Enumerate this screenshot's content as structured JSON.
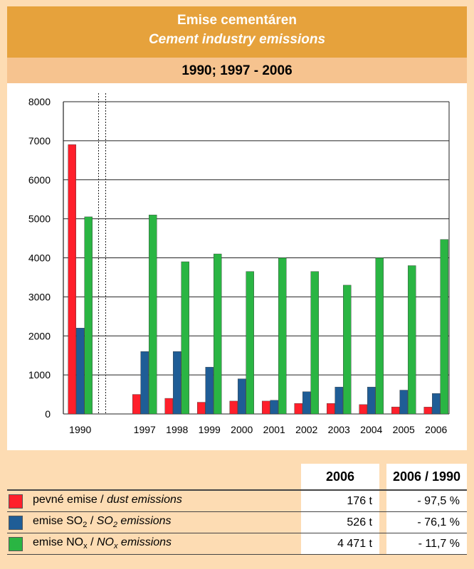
{
  "header": {
    "title_cz": "Emise cementáren",
    "title_en": "Cement industry emissions",
    "period": "1990; 1997 - 2006"
  },
  "chart_data": {
    "type": "bar",
    "categories": [
      "1990",
      "1997",
      "1998",
      "1999",
      "2000",
      "2001",
      "2002",
      "2003",
      "2004",
      "2005",
      "2006"
    ],
    "axis_break_after": "1990",
    "series": [
      {
        "name": "pevné emise / dust emissions",
        "color": "#ff1f2b",
        "values": [
          6900,
          500,
          400,
          300,
          330,
          330,
          270,
          270,
          240,
          180,
          176
        ]
      },
      {
        "name": "emise SO2 / SO2 emissions",
        "color": "#1f5d96",
        "values": [
          2200,
          1600,
          1600,
          1200,
          900,
          350,
          570,
          690,
          690,
          610,
          526
        ]
      },
      {
        "name": "emise NOx / NOx emissions",
        "color": "#2ab543",
        "values": [
          5050,
          5100,
          3900,
          4100,
          3650,
          4000,
          3650,
          3300,
          4000,
          3800,
          4471
        ]
      }
    ],
    "yticks": [
      "0",
      "1000",
      "2000",
      "3000",
      "4000",
      "5000",
      "6000",
      "7000",
      "8000"
    ],
    "ylim": [
      0,
      8000
    ],
    "grid": true
  },
  "table": {
    "col_2006": "2006",
    "col_ratio": "2006 / 1990",
    "rows": [
      {
        "label_cz": "pevné emise",
        "sep": " / ",
        "label_en": "dust emissions",
        "value": "176 t",
        "change": "- 97,5 %",
        "color": "#ff1f2b"
      },
      {
        "label_cz_a": "emise SO",
        "label_cz_sub": "2",
        "sep": " / ",
        "label_en_a": "SO",
        "label_en_sub": "2",
        "label_en_b": " emissions",
        "value": "526 t",
        "change": "- 76,1 %",
        "color": "#1f5d96"
      },
      {
        "label_cz_a": "emise NO",
        "label_cz_sub": "x",
        "sep": " / ",
        "label_en_a": "NO",
        "label_en_sub": "x",
        "label_en_b": " emissions",
        "value": "4 471 t",
        "change": "- 11,7 %",
        "color": "#2ab543"
      }
    ]
  }
}
